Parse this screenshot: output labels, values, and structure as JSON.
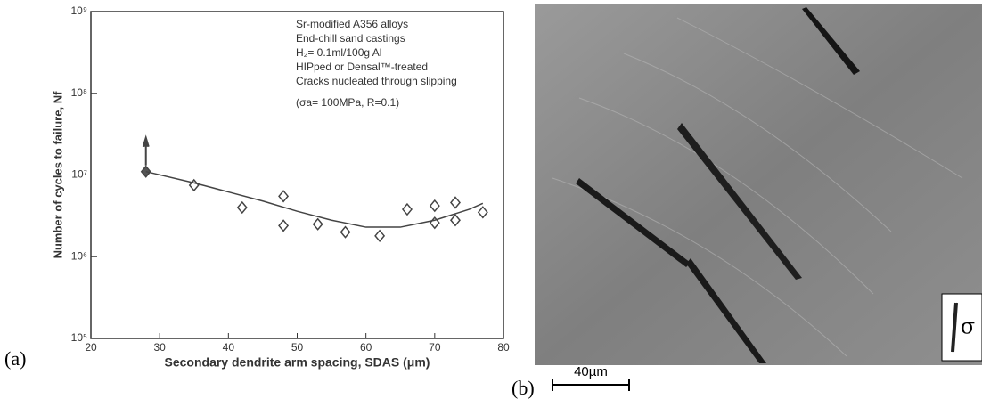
{
  "chart_data": {
    "type": "scatter",
    "xlabel": "Secondary dendrite arm spacing, SDAS (μm)",
    "ylabel": "Number of cycles to failure, Nf",
    "annotations": [
      "Sr-modified A356 alloys",
      "End-chill sand castings",
      "H₂= 0.1ml/100g Al",
      "HIPped or Densal™-treated",
      "Cracks nucleated through slipping",
      "(σa= 100MPa, R=0.1)"
    ],
    "xlim": [
      20,
      80
    ],
    "xticks": [
      20,
      30,
      40,
      50,
      60,
      70,
      80
    ],
    "ylim": [
      100000,
      1000000000
    ],
    "log_y": true,
    "yticks": [
      {
        "value": 100000,
        "label": "10⁵"
      },
      {
        "value": 1000000,
        "label": "10⁶"
      },
      {
        "value": 10000000,
        "label": "10⁷"
      },
      {
        "value": 100000000,
        "label": "10⁸"
      },
      {
        "value": 1000000000,
        "label": "10⁹"
      }
    ],
    "color": "#444444",
    "series": [
      {
        "type": "scatter",
        "x": [
          28,
          35,
          42,
          48,
          48,
          53,
          57,
          62,
          66,
          70,
          70,
          73,
          73,
          77
        ],
        "values": [
          11000000,
          7500000,
          4000000,
          5500000,
          2400000,
          2500000,
          2000000,
          1800000,
          3800000,
          4200000,
          2600000,
          4600000,
          2800000,
          3500000
        ]
      },
      {
        "type": "line",
        "x": [
          28,
          35,
          40,
          45,
          50,
          55,
          60,
          65,
          70,
          75,
          77
        ],
        "values": [
          11000000,
          8000000,
          6200000,
          4800000,
          3600000,
          2800000,
          2300000,
          2300000,
          2800000,
          3800000,
          4500000
        ]
      }
    ]
  },
  "panels": {
    "a": "(a)",
    "b": "(b)",
    "scale_bar": "40µm",
    "stress_symbol": "σ"
  }
}
